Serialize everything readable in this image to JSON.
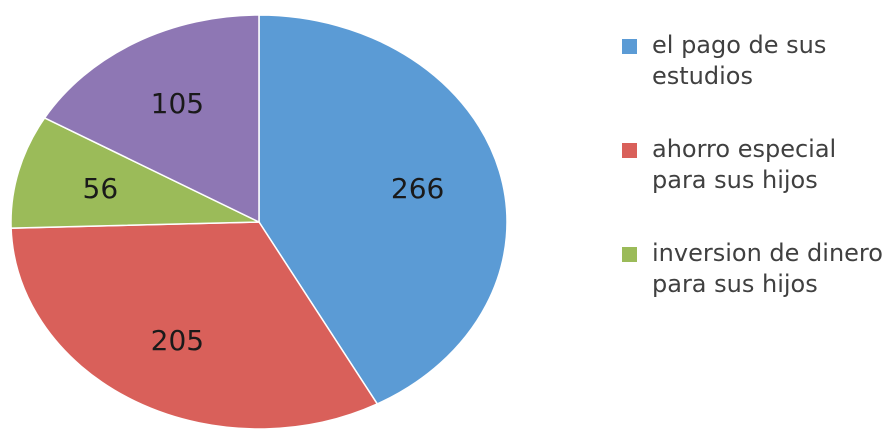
{
  "chart_data": {
    "type": "pie",
    "slices": [
      {
        "label": "el pago de sus estudios",
        "value": 266,
        "color": "#5b9bd5"
      },
      {
        "label": "ahorro especial para sus hijos",
        "value": 205,
        "color": "#d9605a"
      },
      {
        "label": "inversion de dinero para sus hijos",
        "value": 56,
        "color": "#9bbb59"
      },
      {
        "label": "",
        "value": 105,
        "color": "#8e77b4"
      }
    ],
    "legend_position": "right",
    "start_angle_deg": 0,
    "direction": "clockwise"
  },
  "legend": {
    "items": [
      {
        "text": "el pago de sus estudios",
        "color": "#5b9bd5"
      },
      {
        "text": "ahorro especial para sus hijos",
        "color": "#d9605a"
      },
      {
        "text": "inversion de dinero para sus hijos",
        "color": "#9bbb59"
      }
    ]
  }
}
